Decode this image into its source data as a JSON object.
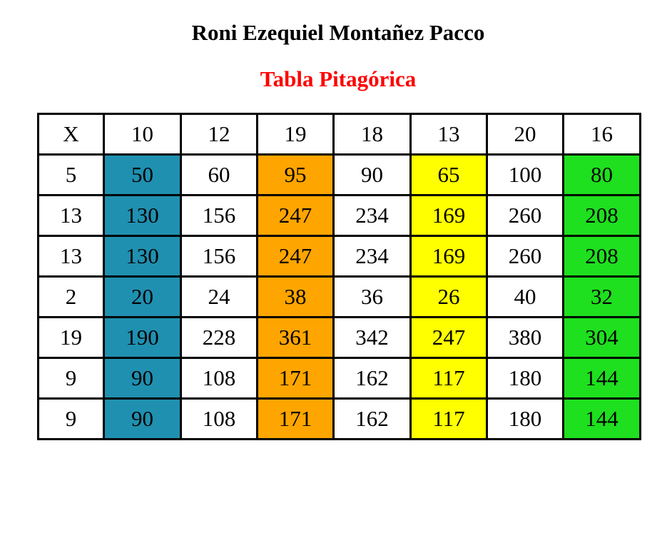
{
  "author": "Roni Ezequiel Montañez Pacco",
  "subtitle": "Tabla Pitagórica",
  "table": {
    "corner": "X",
    "header": [
      "10",
      "12",
      "19",
      "18",
      "13",
      "20",
      "16"
    ],
    "rows": [
      {
        "label": "5",
        "values": [
          "50",
          "60",
          "95",
          "90",
          "65",
          "100",
          "80"
        ]
      },
      {
        "label": "13",
        "values": [
          "130",
          "156",
          "247",
          "234",
          "169",
          "260",
          "208"
        ]
      },
      {
        "label": "13",
        "values": [
          "130",
          "156",
          "247",
          "234",
          "169",
          "260",
          "208"
        ]
      },
      {
        "label": "2",
        "values": [
          "20",
          "24",
          "38",
          "36",
          "26",
          "40",
          "32"
        ]
      },
      {
        "label": "19",
        "values": [
          "190",
          "228",
          "361",
          "342",
          "247",
          "380",
          "304"
        ]
      },
      {
        "label": "9",
        "values": [
          "90",
          "108",
          "171",
          "162",
          "117",
          "180",
          "144"
        ]
      },
      {
        "label": "9",
        "values": [
          "90",
          "108",
          "171",
          "162",
          "117",
          "180",
          "144"
        ]
      }
    ],
    "column_colors": [
      "#2090b0",
      "#ffffff",
      "#ffa500",
      "#ffffff",
      "#ffff00",
      "#ffffff",
      "#1ee01e"
    ]
  }
}
